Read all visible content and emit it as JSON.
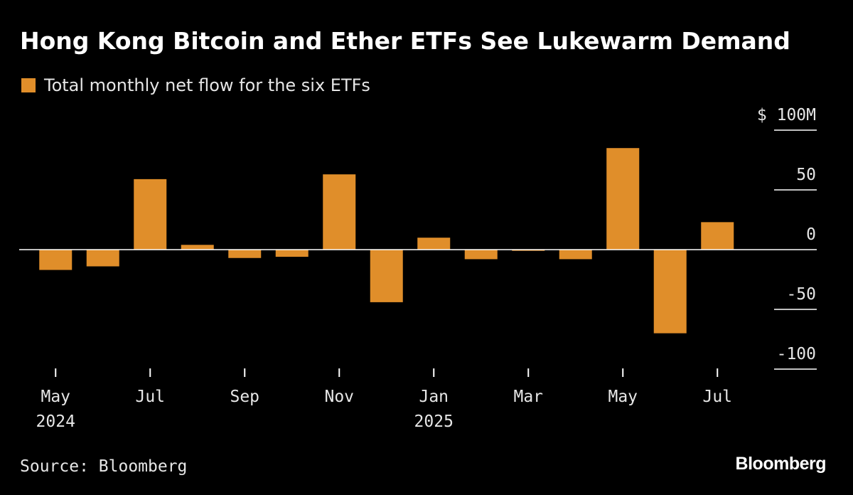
{
  "title": "Hong Kong Bitcoin and Ether ETFs See Lukewarm Demand",
  "source": "Source: Bloomberg",
  "brand": "Bloomberg",
  "colors": {
    "bar": "#e08e2a",
    "background": "#000000",
    "axis": "#ffffff",
    "text": "#e6e6e6"
  },
  "chart_data": {
    "type": "bar",
    "legend": [
      "Total monthly net flow for the six ETFs"
    ],
    "ylabel": "",
    "y_unit_label": "$ 100M",
    "ylim": [
      -100,
      100
    ],
    "yticks": [
      100,
      50,
      0,
      -50,
      -100
    ],
    "ytick_labels": [
      "$ 100M",
      "50",
      "0",
      "-50",
      "-100"
    ],
    "y_axis_position": "right",
    "categories": [
      "2024-05",
      "2024-06",
      "2024-07",
      "2024-08",
      "2024-09",
      "2024-10",
      "2024-11",
      "2024-12",
      "2025-01",
      "2025-02",
      "2025-03",
      "2025-04",
      "2025-05",
      "2025-06",
      "2025-07"
    ],
    "series": [
      {
        "values": [
          -17,
          -14,
          59,
          4,
          -7,
          -6,
          63,
          -44,
          10,
          -8,
          -1,
          -8,
          85,
          -70,
          23
        ]
      }
    ],
    "x_tick_labels": [
      {
        "category": "2024-05",
        "month": "May",
        "year": "2024"
      },
      {
        "category": "2024-07",
        "month": "Jul",
        "year": ""
      },
      {
        "category": "2024-09",
        "month": "Sep",
        "year": ""
      },
      {
        "category": "2024-11",
        "month": "Nov",
        "year": ""
      },
      {
        "category": "2025-01",
        "month": "Jan",
        "year": "2025"
      },
      {
        "category": "2025-03",
        "month": "Mar",
        "year": ""
      },
      {
        "category": "2025-05",
        "month": "May",
        "year": ""
      },
      {
        "category": "2025-07",
        "month": "Jul",
        "year": ""
      }
    ]
  }
}
